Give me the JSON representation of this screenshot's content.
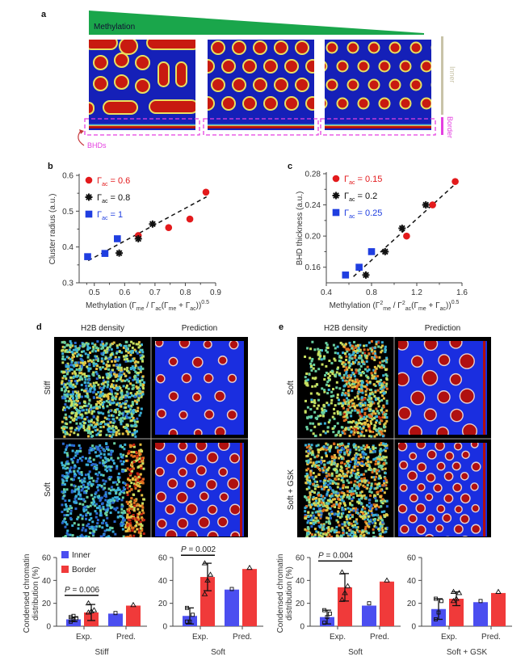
{
  "figure": {
    "panels": {
      "a": {
        "letter": "a",
        "gradient_label": "Methylation",
        "inner_label": "Inner",
        "border_label": "Border",
        "bhd_label": "BHDs",
        "colors": {
          "gradient": "#1aa64b",
          "inner_bar": "#c8c3a8",
          "border": "#e43fe0",
          "bhd_arrow": "#c6363a",
          "field_low": "#1520b8",
          "field_high": "#b81a10"
        },
        "simulations": [
          {
            "name": "high-methylation",
            "pattern": "elongated"
          },
          {
            "name": "medium-methylation",
            "pattern": "hexagonal-large"
          },
          {
            "name": "low-methylation",
            "pattern": "hexagonal-small"
          }
        ]
      },
      "d": {
        "letter": "d",
        "col_headers": [
          "H2B density",
          "Prediction"
        ],
        "row_labels": [
          "Stiff",
          "Soft"
        ]
      },
      "e": {
        "letter": "e",
        "col_headers": [
          "H2B density",
          "Prediction"
        ],
        "row_labels": [
          "Soft",
          "Soft + GSK"
        ]
      }
    }
  },
  "chart_data": [
    {
      "id": "b",
      "type": "scatter",
      "letter": "b",
      "xlabel": "Methylation (Γme / Γac(Γme + Γac))^0.5",
      "xlabel_parts": {
        "pre": "Methylation (Γ",
        "s1": "me",
        "mid1": " / Γ",
        "s2": "ac",
        "mid2": "(Γ",
        "s3": "me",
        "mid3": " + Γ",
        "s4": "ac",
        "post": "))",
        "exp": "0.5"
      },
      "ylabel": "Cluster radius (a.u.)",
      "xlim": [
        0.45,
        0.9
      ],
      "ylim": [
        0.3,
        0.6
      ],
      "xticks": [
        0.5,
        0.6,
        0.7,
        0.8,
        0.9
      ],
      "yticks": [
        0.3,
        0.4,
        0.5,
        0.6
      ],
      "fit_line": {
        "x": [
          0.48,
          0.87
        ],
        "y": [
          0.362,
          0.54
        ]
      },
      "series": [
        {
          "name": "Γac = 0.6",
          "symbol": "circle",
          "color": "#e31a1c",
          "label_base": "Γ",
          "label_sub": "ac",
          "label_val": " = 0.6",
          "x": [
            0.645,
            0.745,
            0.815,
            0.868
          ],
          "y": [
            0.432,
            0.454,
            0.478,
            0.553
          ]
        },
        {
          "name": "Γac = 0.8",
          "symbol": "star",
          "color": "#111111",
          "label_base": "Γ",
          "label_sub": "ac",
          "label_val": " = 0.8",
          "x": [
            0.582,
            0.645,
            0.692
          ],
          "y": [
            0.383,
            0.423,
            0.464
          ]
        },
        {
          "name": "Γac = 1",
          "symbol": "square",
          "color": "#1f3ee0",
          "label_base": "Γ",
          "label_sub": "ac",
          "label_val": " = 1",
          "x": [
            0.478,
            0.535,
            0.576
          ],
          "y": [
            0.373,
            0.382,
            0.423
          ]
        }
      ]
    },
    {
      "id": "c",
      "type": "scatter",
      "letter": "c",
      "xlabel": "Methylation (Γme² / Γac²(Γme + Γac))^0.5",
      "xlabel_parts": {
        "pre": "Methylation (Γ",
        "s1": "me",
        "sup1": "2",
        "mid1": " / Γ",
        "s2": "ac",
        "sup2": "2",
        "mid2": "(Γ",
        "s3": "me",
        "mid3": " + Γ",
        "s4": "ac",
        "post": "))",
        "exp": "0.5"
      },
      "ylabel": "BHD thickness (a.u.)",
      "xlim": [
        0.4,
        1.6
      ],
      "ylim": [
        0.14,
        0.28
      ],
      "xticks": [
        0.4,
        0.8,
        1.2,
        1.6
      ],
      "yticks": [
        0.16,
        0.2,
        0.24,
        0.28
      ],
      "fit_line": {
        "x": [
          0.64,
          1.55
        ],
        "y": [
          0.148,
          0.268
        ]
      },
      "series": [
        {
          "name": "Γac = 0.15",
          "symbol": "circle",
          "color": "#e31a1c",
          "label_base": "Γ",
          "label_sub": "ac",
          "label_val": " = 0.15",
          "x": [
            1.11,
            1.34,
            1.54
          ],
          "y": [
            0.2,
            0.24,
            0.27
          ]
        },
        {
          "name": "Γac = 0.2",
          "symbol": "star",
          "color": "#111111",
          "label_base": "Γ",
          "label_sub": "ac",
          "label_val": " = 0.2",
          "x": [
            0.75,
            0.92,
            1.07,
            1.28
          ],
          "y": [
            0.15,
            0.18,
            0.21,
            0.24
          ]
        },
        {
          "name": "Γac = 0.25",
          "symbol": "square",
          "color": "#1f3ee0",
          "label_base": "Γ",
          "label_sub": "ac",
          "label_val": " = 0.25",
          "x": [
            0.57,
            0.69,
            0.8
          ],
          "y": [
            0.15,
            0.16,
            0.18
          ]
        }
      ]
    },
    {
      "id": "d-stiff",
      "type": "bar",
      "title": "Stiff",
      "ylabel": "Condensed chromatin distribution (%)",
      "ylabel_lines": [
        "Condensed chromatin",
        "distribution (%)"
      ],
      "ylim": [
        0,
        60
      ],
      "yticks": [
        0,
        20,
        40,
        60
      ],
      "categories": [
        "Exp.",
        "Pred."
      ],
      "legend": [
        {
          "name": "Inner",
          "color": "#4b4ef0"
        },
        {
          "name": "Border",
          "color": "#f03a3a"
        }
      ],
      "series": [
        {
          "name": "Inner",
          "color": "#4b4ef0",
          "values": [
            6,
            11
          ],
          "error": [
            2,
            0
          ],
          "points": [
            [
              4,
              6,
              7,
              8,
              9
            ],
            [
              11.5
            ]
          ]
        },
        {
          "name": "Border",
          "color": "#f03a3a",
          "values": [
            12,
            18
          ],
          "error": [
            7,
            0
          ],
          "points": [
            [
              12,
              13,
              14,
              20
            ],
            [
              18.5
            ]
          ]
        }
      ],
      "annotation": {
        "text": "P = 0.006",
        "p_label": "P",
        "p_value": " = 0.006",
        "level": 27
      }
    },
    {
      "id": "d-soft",
      "type": "bar",
      "title": "Soft",
      "ylim": [
        0,
        60
      ],
      "yticks": [
        0,
        20,
        40,
        60
      ],
      "categories": [
        "Exp.",
        "Pred."
      ],
      "series": [
        {
          "name": "Inner",
          "color": "#4b4ef0",
          "values": [
            9,
            32
          ],
          "error": [
            7,
            0
          ],
          "points": [
            [
              4,
              4,
              10,
              16
            ],
            [
              32.5
            ]
          ]
        },
        {
          "name": "Border",
          "color": "#f03a3a",
          "values": [
            43,
            50
          ],
          "error": [
            12,
            0
          ],
          "points": [
            [
              28,
              40,
              45,
              55
            ],
            [
              51
            ]
          ]
        }
      ],
      "annotation": {
        "text": "P = 0.002",
        "p_label": "P",
        "p_value": " = 0.002",
        "level": 62
      }
    },
    {
      "id": "e-soft",
      "type": "bar",
      "title": "Soft",
      "ylabel": "Condensed chromatin distribution (%)",
      "ylabel_lines": [
        "Condensed chromatin",
        "distribution (%)"
      ],
      "ylim": [
        0,
        60
      ],
      "yticks": [
        0,
        20,
        40,
        60
      ],
      "categories": [
        "Exp.",
        "Pred."
      ],
      "series": [
        {
          "name": "Inner",
          "color": "#4b4ef0",
          "values": [
            8,
            18
          ],
          "error": [
            6,
            0
          ],
          "points": [
            [
              3,
              8,
              11,
              14
            ],
            [
              20
            ]
          ]
        },
        {
          "name": "Border",
          "color": "#f03a3a",
          "values": [
            34,
            39
          ],
          "error": [
            12,
            0
          ],
          "points": [
            [
              23,
              29,
              35,
              47
            ],
            [
              40
            ]
          ]
        }
      ],
      "annotation": {
        "text": "P = 0.004",
        "p_label": "P",
        "p_value": " = 0.004",
        "level": 57
      }
    },
    {
      "id": "e-soft-gsk",
      "type": "bar",
      "title": "Soft + GSK",
      "ylim": [
        0,
        60
      ],
      "yticks": [
        0,
        20,
        40,
        60
      ],
      "categories": [
        "Exp.",
        "Pred."
      ],
      "series": [
        {
          "name": "Inner",
          "color": "#4b4ef0",
          "values": [
            15,
            21
          ],
          "error": [
            9,
            0
          ],
          "points": [
            [
              6,
              12,
              22,
              24
            ],
            [
              22
            ]
          ]
        },
        {
          "name": "Border",
          "color": "#f03a3a",
          "values": [
            24,
            29
          ],
          "error": [
            6,
            0
          ],
          "points": [
            [
              22,
              24,
              29,
              30
            ],
            [
              30
            ]
          ]
        }
      ]
    }
  ]
}
